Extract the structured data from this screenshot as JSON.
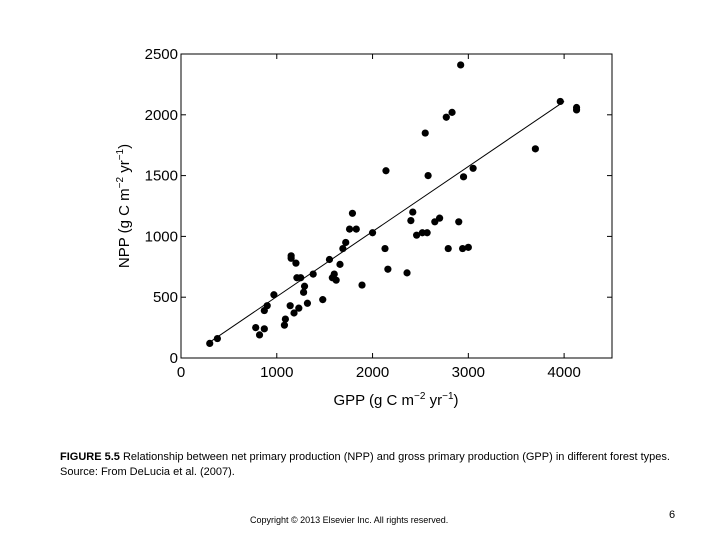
{
  "chart_data": {
    "type": "scatter",
    "xlabel": "GPP (g C m",
    "xlabel_exp1": "−2",
    "xlabel_mid": " yr",
    "xlabel_exp2": "−1",
    "xlabel_end": ")",
    "ylabel": "NPP (g C m",
    "ylabel_exp1": "−2",
    "ylabel_mid": " yr",
    "ylabel_exp2": "−1",
    "ylabel_end": ")",
    "xlim": [
      0,
      4500
    ],
    "ylim": [
      0,
      2500
    ],
    "x_ticks": [
      0,
      1000,
      2000,
      3000,
      4000
    ],
    "y_ticks": [
      0,
      500,
      1000,
      1500,
      2000,
      2500
    ],
    "points": [
      [
        300,
        120
      ],
      [
        380,
        160
      ],
      [
        780,
        250
      ],
      [
        820,
        190
      ],
      [
        870,
        240
      ],
      [
        870,
        390
      ],
      [
        900,
        430
      ],
      [
        970,
        520
      ],
      [
        1080,
        270
      ],
      [
        1090,
        320
      ],
      [
        1140,
        430
      ],
      [
        1150,
        820
      ],
      [
        1150,
        840
      ],
      [
        1180,
        370
      ],
      [
        1200,
        780
      ],
      [
        1210,
        660
      ],
      [
        1230,
        410
      ],
      [
        1250,
        660
      ],
      [
        1280,
        540
      ],
      [
        1290,
        590
      ],
      [
        1320,
        450
      ],
      [
        1380,
        690
      ],
      [
        1480,
        480
      ],
      [
        1550,
        810
      ],
      [
        1580,
        660
      ],
      [
        1600,
        690
      ],
      [
        1620,
        640
      ],
      [
        1660,
        770
      ],
      [
        1690,
        900
      ],
      [
        1720,
        950
      ],
      [
        1760,
        1060
      ],
      [
        1790,
        1190
      ],
      [
        1830,
        1060
      ],
      [
        1890,
        600
      ],
      [
        2000,
        1030
      ],
      [
        2130,
        900
      ],
      [
        2140,
        1540
      ],
      [
        2160,
        730
      ],
      [
        2360,
        700
      ],
      [
        2400,
        1130
      ],
      [
        2420,
        1200
      ],
      [
        2460,
        1010
      ],
      [
        2520,
        1030
      ],
      [
        2550,
        1850
      ],
      [
        2570,
        1030
      ],
      [
        2580,
        1500
      ],
      [
        2650,
        1120
      ],
      [
        2700,
        1150
      ],
      [
        2770,
        1980
      ],
      [
        2790,
        900
      ],
      [
        2830,
        2020
      ],
      [
        2900,
        1120
      ],
      [
        2920,
        2410
      ],
      [
        2940,
        900
      ],
      [
        2950,
        1490
      ],
      [
        3000,
        910
      ],
      [
        3050,
        1560
      ],
      [
        3700,
        1720
      ],
      [
        3960,
        2110
      ],
      [
        4130,
        2060
      ],
      [
        4130,
        2040
      ]
    ],
    "regression_line": {
      "from": [
        290,
        125
      ],
      "to": [
        4000,
        2110
      ]
    }
  },
  "caption": {
    "figure_label": "FIGURE 5.5",
    "text": " Relationship between net primary production (NPP) and gross primary production (GPP) in different forest types. Source: From DeLucia et al. (2007)."
  },
  "footer": {
    "copyright": "Copyright © 2013 Elsevier Inc. All rights reserved.",
    "page_number": "6"
  }
}
